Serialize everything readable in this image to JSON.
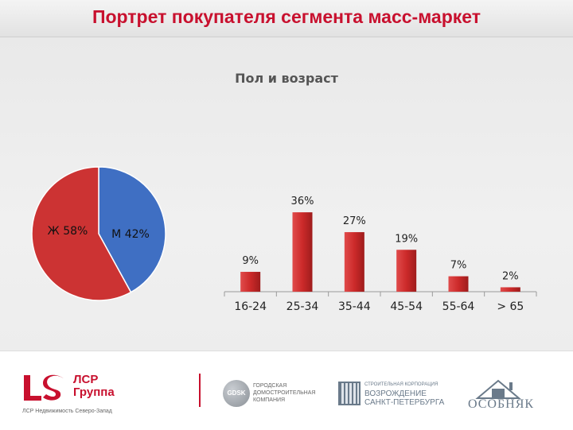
{
  "slide": {
    "title": "Портрет покупателя сегмента масс-маркет"
  },
  "chart_data": [
    {
      "type": "pie",
      "labels": [
        "Ж",
        "М"
      ],
      "values": [
        58,
        42
      ],
      "slice_labels": [
        "Ж 58%",
        "М 42%"
      ],
      "colors": [
        "#cc3333",
        "#3f6fc3"
      ]
    },
    {
      "type": "bar",
      "title": "Пол и возраст",
      "categories": [
        "16-24",
        "25-34",
        "35-44",
        "45-54",
        "55-64",
        "> 65"
      ],
      "values": [
        9,
        36,
        27,
        19,
        7,
        2
      ],
      "value_labels": [
        "9%",
        "36%",
        "27%",
        "19%",
        "7%",
        "2%"
      ],
      "ylim": [
        0,
        40
      ],
      "color": "#cc2a2a"
    }
  ],
  "footer": {
    "lsr": {
      "name_line1": "ЛСР",
      "name_line2": "Группа",
      "subtitle": "ЛСР Недвижимость Северо-Запад"
    },
    "gdsk": {
      "abbr": "GDSK",
      "text": "ГОРОДСКАЯ ДОМОСТРОИТЕЛЬНАЯ КОМПАНИЯ"
    },
    "vozrozhdenie": {
      "small": "СТРОИТЕЛЬНАЯ КОРПОРАЦИЯ",
      "line1": "ВОЗРОЖДЕНИЕ",
      "line2": "САНКТ-ПЕТЕРБУРГА"
    },
    "osobnyak": {
      "name": "ОСОБНЯК"
    }
  }
}
